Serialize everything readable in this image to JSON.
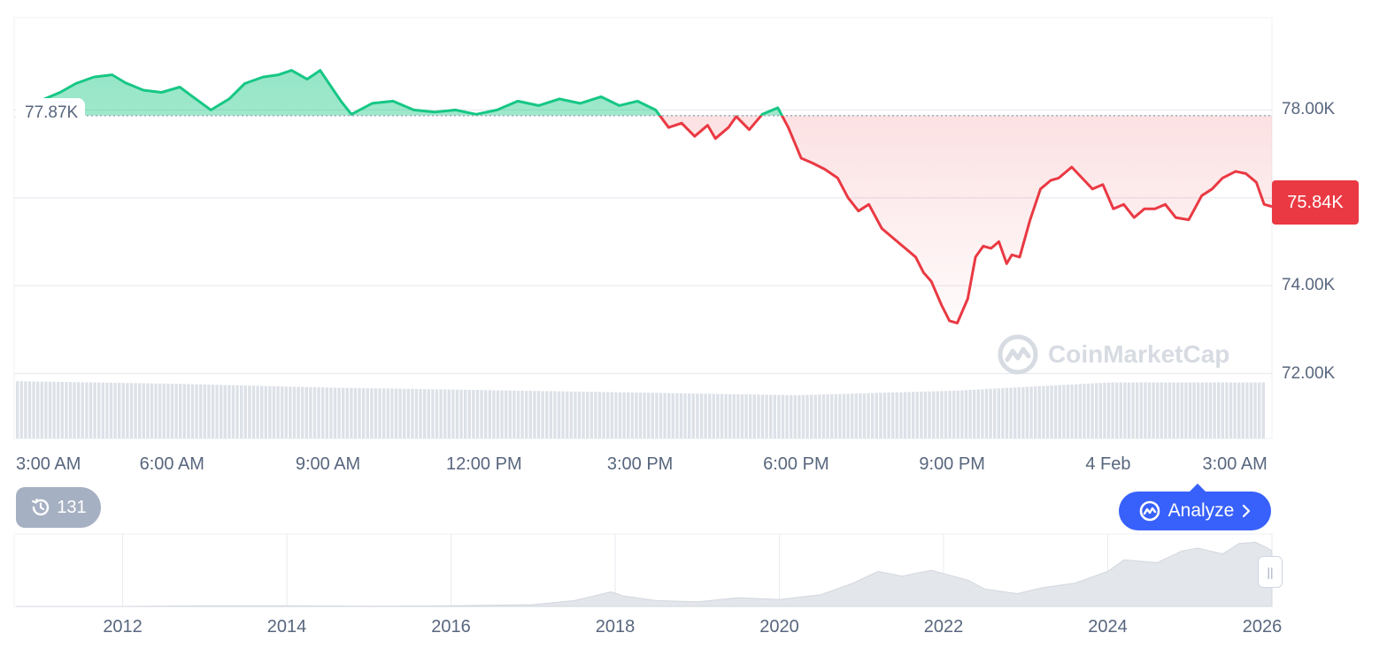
{
  "chart_data": {
    "type": "area",
    "currency_unit": "K",
    "y_ticks": [
      "78.00K",
      "74.00K",
      "72.00K"
    ],
    "ylim": [
      71.95,
      80.1
    ],
    "reference_value": 77.87,
    "reference_label": "77.87K",
    "current_value": 75.84,
    "current_label": "75.84K",
    "x_ticks": [
      "3:00 AM",
      "6:00 AM",
      "9:00 AM",
      "12:00 PM",
      "3:00 PM",
      "6:00 PM",
      "9:00 PM",
      "4 Feb",
      "3:00 AM"
    ],
    "x_hours": [
      0,
      3,
      6,
      9,
      12,
      15,
      18,
      21,
      24
    ],
    "x_range_hours": [
      0,
      24.15
    ],
    "series": [
      {
        "x_hours": [
          0,
          0.1,
          0.45,
          0.85,
          1.15,
          1.5,
          1.85,
          2.1,
          2.45,
          2.8,
          3.15,
          3.4,
          3.75,
          4.1,
          4.4,
          4.75,
          5.05,
          5.3,
          5.6,
          5.85,
          6.25,
          6.45,
          6.85,
          7.25,
          7.65,
          8.05,
          8.45,
          8.85,
          9.25,
          9.65,
          10.05,
          10.45,
          10.85,
          11.25,
          11.6,
          11.95,
          12.3,
          12.55,
          12.8,
          13.05,
          13.3,
          13.45,
          13.7,
          13.85,
          14.1,
          14.35,
          14.65,
          14.85,
          15.1,
          15.3,
          15.55,
          15.8,
          16.0,
          16.2,
          16.4,
          16.65,
          16.85,
          17.1,
          17.3,
          17.45,
          17.6,
          17.8,
          17.95,
          18.1,
          18.3,
          18.45,
          18.6,
          18.75,
          18.9,
          19.05,
          19.15,
          19.3,
          19.5,
          19.7,
          19.9,
          20.05,
          20.3,
          20.5,
          20.7,
          20.9,
          21.1,
          21.3,
          21.5,
          21.7,
          21.9,
          22.1,
          22.3,
          22.55,
          22.8,
          23.0,
          23.2,
          23.45,
          23.65,
          23.85,
          24.0,
          24.15
        ],
        "values": [
          77.82,
          77.85,
          78.2,
          78.4,
          78.6,
          78.75,
          78.8,
          78.62,
          78.45,
          78.4,
          78.52,
          78.3,
          78.0,
          78.25,
          78.6,
          78.75,
          78.8,
          78.9,
          78.7,
          78.9,
          78.2,
          77.9,
          78.15,
          78.2,
          78.0,
          77.95,
          78.0,
          77.9,
          78.0,
          78.2,
          78.1,
          78.25,
          78.15,
          78.3,
          78.1,
          78.2,
          78.0,
          77.6,
          77.7,
          77.4,
          77.65,
          77.35,
          77.6,
          77.85,
          77.55,
          77.9,
          78.05,
          77.6,
          76.9,
          76.8,
          76.65,
          76.45,
          76.0,
          75.7,
          75.85,
          75.3,
          75.1,
          74.85,
          74.65,
          74.3,
          74.1,
          73.55,
          73.2,
          73.15,
          73.7,
          74.65,
          74.9,
          74.85,
          75.0,
          74.5,
          74.7,
          74.65,
          75.5,
          76.2,
          76.4,
          76.45,
          76.7,
          76.45,
          76.2,
          76.3,
          75.75,
          75.85,
          75.55,
          75.75,
          75.75,
          75.85,
          75.55,
          75.5,
          76.05,
          76.2,
          76.45,
          76.6,
          76.55,
          76.35,
          75.85,
          75.8
        ]
      }
    ],
    "volume_series": {
      "x_hours": [
        0,
        3,
        6,
        9,
        12,
        15,
        18,
        21,
        24
      ],
      "values": [
        0.9,
        0.86,
        0.8,
        0.76,
        0.72,
        0.68,
        0.75,
        0.88,
        0.88
      ]
    },
    "navigator": {
      "x_ticks": [
        "2012",
        "2014",
        "2016",
        "2018",
        "2020",
        "2022",
        "2024",
        "2026"
      ],
      "years": [
        2010.7,
        2012,
        2013,
        2014,
        2015,
        2016,
        2017,
        2017.5,
        2017.95,
        2018.1,
        2018.5,
        2019,
        2019.5,
        2020,
        2020.5,
        2020.9,
        2021.2,
        2021.5,
        2021.7,
        2021.85,
        2022.3,
        2022.5,
        2022.9,
        2023.2,
        2023.6,
        2024.0,
        2024.2,
        2024.6,
        2024.9,
        2025.1,
        2025.4,
        2025.6,
        2025.8,
        2025.95,
        2026.0
      ],
      "values": [
        0,
        0,
        0.01,
        0.01,
        0.005,
        0.01,
        0.03,
        0.1,
        0.25,
        0.18,
        0.1,
        0.08,
        0.15,
        0.12,
        0.2,
        0.4,
        0.6,
        0.52,
        0.58,
        0.62,
        0.45,
        0.3,
        0.22,
        0.32,
        0.4,
        0.6,
        0.8,
        0.75,
        0.95,
        1.0,
        0.9,
        1.08,
        1.1,
        1.0,
        0.95
      ]
    },
    "colors": {
      "up": "#16c784",
      "down": "#ea3943",
      "grid": "#e8ebf0",
      "volume": "#dde1e8",
      "navigator": "#e3e6eb"
    }
  },
  "ui": {
    "history_count": "131",
    "analyze_label": "Analyze",
    "watermark": "CoinMarketCap",
    "history_icon": "clock-history-icon",
    "analyze_icon": "coinmarketcap-logo-icon",
    "handle_icon": "drag-handle-icon"
  }
}
